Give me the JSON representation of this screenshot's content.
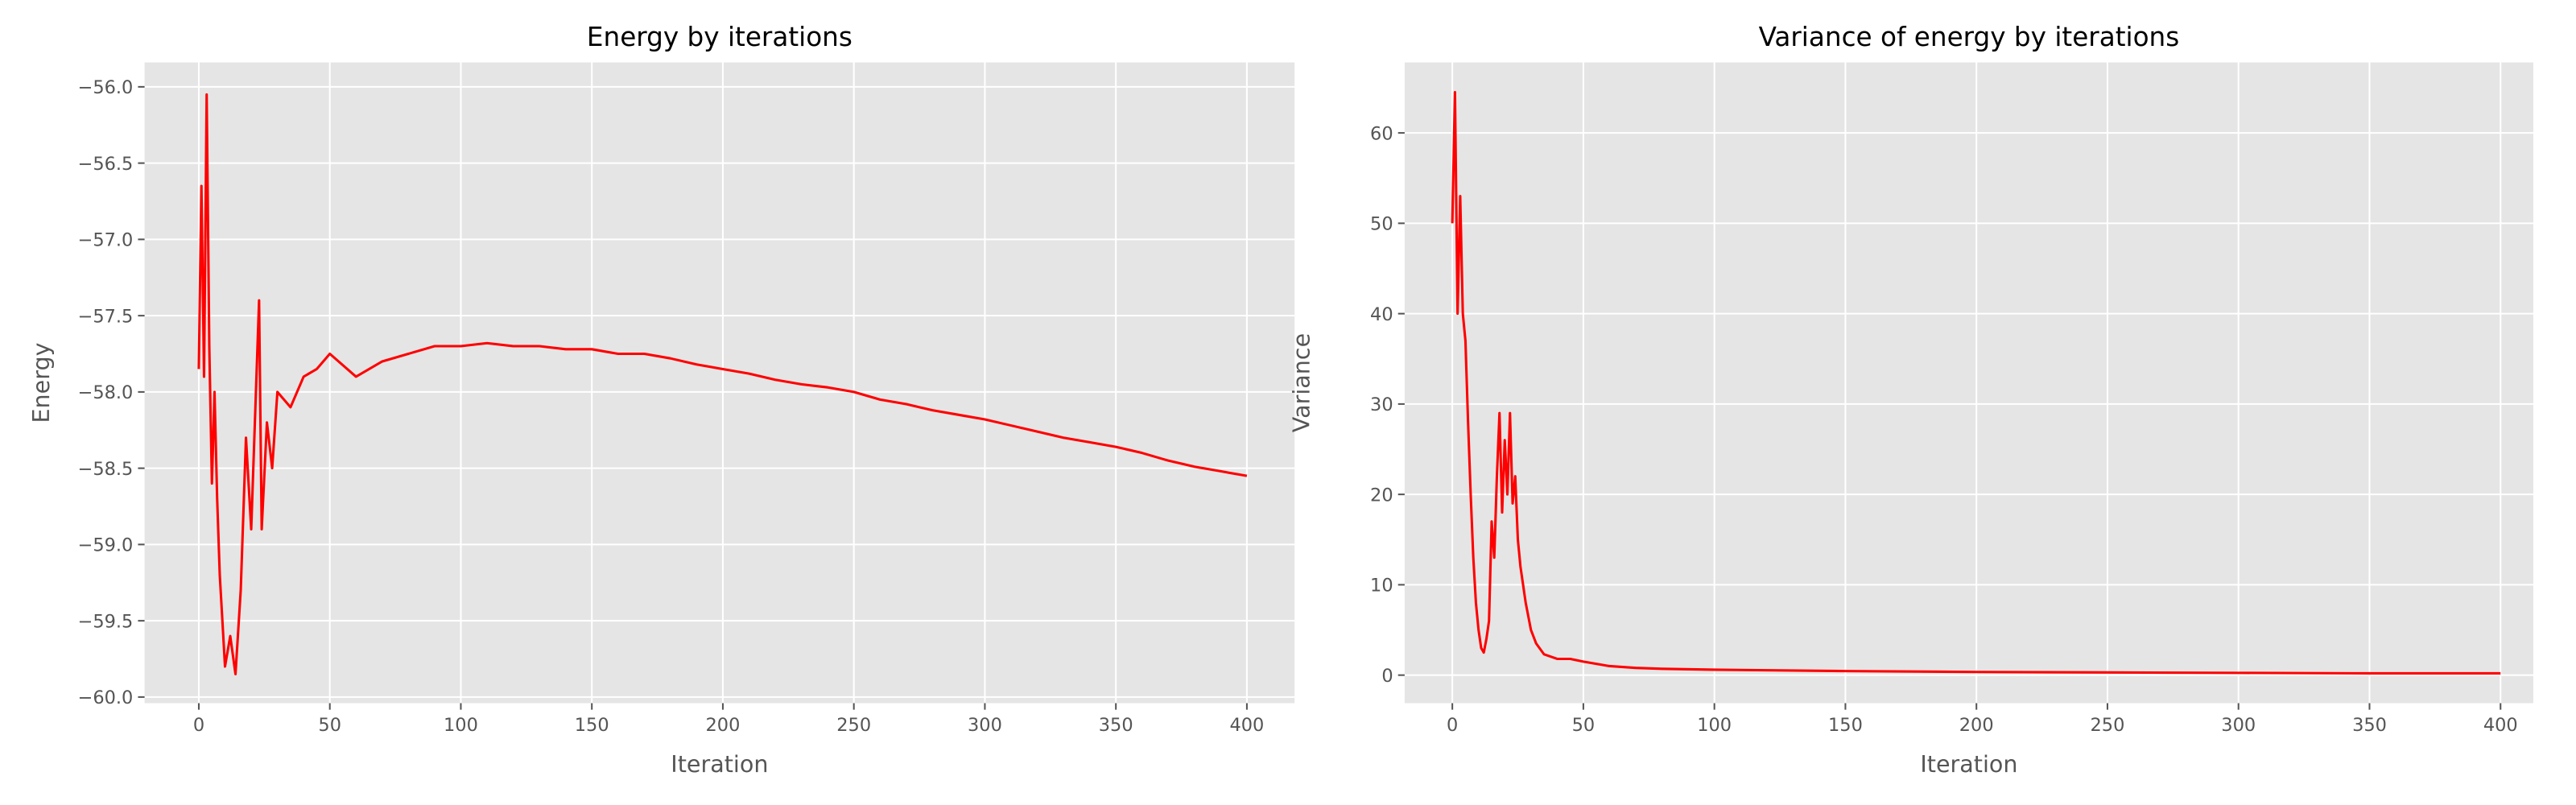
{
  "chart_data": [
    {
      "type": "line",
      "title": "Energy by iterations",
      "xlabel": "Iteration",
      "ylabel": "Energy",
      "color": "#ff0000",
      "grid": true,
      "x": [
        0,
        1,
        2,
        3,
        4,
        5,
        6,
        7,
        8,
        9,
        10,
        12,
        14,
        16,
        18,
        20,
        22,
        23,
        24,
        26,
        28,
        30,
        35,
        40,
        45,
        50,
        60,
        70,
        80,
        90,
        100,
        110,
        120,
        130,
        140,
        150,
        160,
        170,
        180,
        190,
        200,
        210,
        220,
        230,
        240,
        250,
        260,
        270,
        280,
        290,
        300,
        310,
        320,
        330,
        340,
        350,
        360,
        370,
        380,
        390,
        400
      ],
      "values": [
        -57.85,
        -56.65,
        -57.9,
        -56.05,
        -57.7,
        -58.6,
        -58.0,
        -58.7,
        -59.2,
        -59.5,
        -59.8,
        -59.6,
        -59.85,
        -59.3,
        -58.3,
        -58.9,
        -57.9,
        -57.4,
        -58.9,
        -58.2,
        -58.5,
        -58.0,
        -58.1,
        -57.9,
        -57.85,
        -57.75,
        -57.9,
        -57.8,
        -57.75,
        -57.7,
        -57.7,
        -57.68,
        -57.7,
        -57.7,
        -57.72,
        -57.72,
        -57.75,
        -57.75,
        -57.78,
        -57.82,
        -57.85,
        -57.88,
        -57.92,
        -57.95,
        -57.97,
        -58.0,
        -58.05,
        -58.08,
        -58.12,
        -58.15,
        -58.18,
        -58.22,
        -58.26,
        -58.3,
        -58.33,
        -58.36,
        -58.4,
        -58.45,
        -58.49,
        -58.52,
        -58.55
      ],
      "xlim": [
        -20.7,
        418.2
      ],
      "ylim": [
        -60.04,
        -55.84
      ],
      "xticks": [
        0,
        50,
        100,
        150,
        200,
        250,
        300,
        350,
        400
      ],
      "yticks": [
        {
          "value": -60.0,
          "label": "−60.0"
        },
        {
          "value": -59.5,
          "label": "−59.5"
        },
        {
          "value": -59.0,
          "label": "−59.0"
        },
        {
          "value": -58.5,
          "label": "−58.5"
        },
        {
          "value": -58.0,
          "label": "−58.0"
        },
        {
          "value": -57.5,
          "label": "−57.5"
        },
        {
          "value": -57.0,
          "label": "−57.0"
        },
        {
          "value": -56.5,
          "label": "−56.5"
        },
        {
          "value": -56.0,
          "label": "−56.0"
        }
      ]
    },
    {
      "type": "line",
      "title": "Variance of energy by iterations",
      "xlabel": "Iteration",
      "ylabel": "Variance",
      "color": "#ff0000",
      "grid": true,
      "x": [
        0,
        1,
        2,
        3,
        4,
        5,
        6,
        7,
        8,
        9,
        10,
        11,
        12,
        13,
        14,
        15,
        16,
        17,
        18,
        19,
        20,
        21,
        22,
        23,
        24,
        25,
        26,
        28,
        30,
        32,
        35,
        40,
        45,
        50,
        60,
        70,
        80,
        100,
        150,
        200,
        250,
        300,
        350,
        400
      ],
      "values": [
        50,
        64.5,
        40,
        53,
        40,
        37,
        28,
        20,
        13,
        8,
        5,
        3,
        2.5,
        4,
        6,
        17,
        13,
        22,
        29,
        18,
        26,
        20,
        29,
        19,
        22,
        15,
        12,
        8,
        5,
        3.5,
        2.3,
        1.8,
        1.8,
        1.5,
        1.0,
        0.8,
        0.7,
        0.6,
        0.45,
        0.35,
        0.3,
        0.25,
        0.2,
        0.2
      ],
      "xlim": [
        -18.2,
        412.5
      ],
      "ylim": [
        -3.1,
        67.8
      ],
      "xticks": [
        0,
        50,
        100,
        150,
        200,
        250,
        300,
        350,
        400
      ],
      "yticks": [
        0,
        10,
        20,
        30,
        40,
        50,
        60
      ]
    }
  ]
}
